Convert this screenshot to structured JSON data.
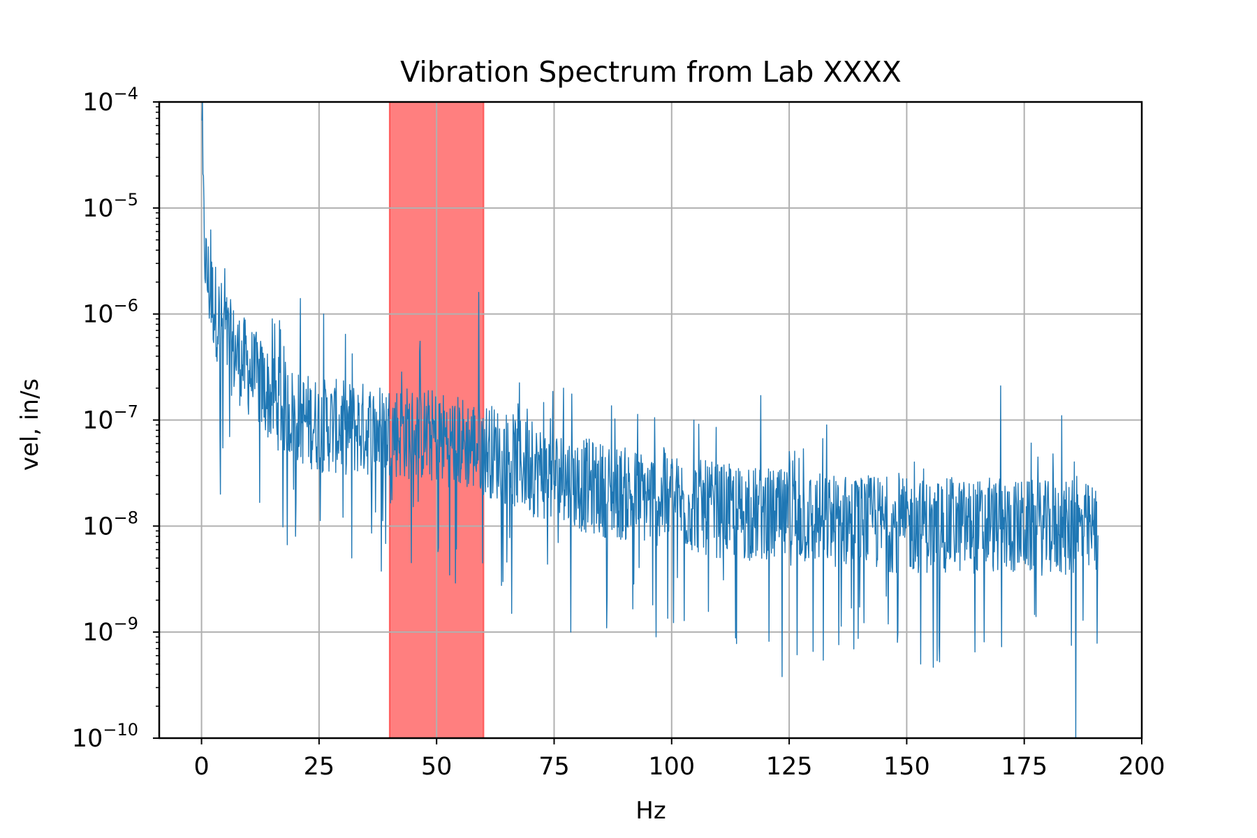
{
  "chart_data": {
    "type": "line",
    "title": "Vibration Spectrum from Lab XXXX",
    "xlabel": "Hz",
    "ylabel": "vel, in/s",
    "xlim": [
      -9,
      200
    ],
    "ylim": [
      1e-10,
      0.0001
    ],
    "yscale": "log",
    "grid": true,
    "line_color": "#1f77b4",
    "x_ticks": [
      {
        "value": 0,
        "label": "0"
      },
      {
        "value": 25,
        "label": "25"
      },
      {
        "value": 50,
        "label": "50"
      },
      {
        "value": 75,
        "label": "75"
      },
      {
        "value": 100,
        "label": "100"
      },
      {
        "value": 125,
        "label": "125"
      },
      {
        "value": 150,
        "label": "150"
      },
      {
        "value": 175,
        "label": "175"
      },
      {
        "value": 200,
        "label": "200"
      }
    ],
    "y_ticks": [
      {
        "value": 0.0001,
        "base": "10",
        "exp": "−4"
      },
      {
        "value": 1e-05,
        "base": "10",
        "exp": "−5"
      },
      {
        "value": 1e-06,
        "base": "10",
        "exp": "−6"
      },
      {
        "value": 1e-07,
        "base": "10",
        "exp": "−7"
      },
      {
        "value": 1e-08,
        "base": "10",
        "exp": "−8"
      },
      {
        "value": 1e-09,
        "base": "10",
        "exp": "−9"
      },
      {
        "value": 1e-10,
        "base": "10",
        "exp": "−10"
      }
    ],
    "highlight_band": {
      "x_start": 40,
      "x_end": 60,
      "color": "#ff0000",
      "opacity": 0.5
    },
    "series": [
      {
        "x_start": 0.1,
        "x_end": 190.7,
        "envelope": [
          [
            0.1,
            0.0001
          ],
          [
            0.3,
            1.5e-05
          ],
          [
            0.5,
            6e-06
          ],
          [
            1,
            2.5e-06
          ],
          [
            2,
            1.5e-06
          ],
          [
            4,
            8e-07
          ],
          [
            6,
            5e-07
          ],
          [
            10,
            3e-07
          ],
          [
            15,
            1.6e-07
          ],
          [
            20,
            1.1e-07
          ],
          [
            25,
            9e-08
          ],
          [
            30,
            8.5e-08
          ],
          [
            40,
            8e-08
          ],
          [
            50,
            7e-08
          ],
          [
            60,
            5.5e-08
          ],
          [
            70,
            3.5e-08
          ],
          [
            80,
            2.5e-08
          ],
          [
            90,
            2e-08
          ],
          [
            100,
            1.7e-08
          ],
          [
            110,
            1.4e-08
          ],
          [
            125,
            1.2e-08
          ],
          [
            140,
            1.1e-08
          ],
          [
            150,
            1e-08
          ],
          [
            170,
            1e-08
          ],
          [
            190.7,
            9e-09
          ]
        ],
        "spikes": [
          {
            "x": 21,
            "y": 1.4e-06
          },
          {
            "x": 26,
            "y": 1e-06
          },
          {
            "x": 59,
            "y": 1.6e-06
          },
          {
            "x": 170,
            "y": 2.1e-07
          },
          {
            "x": 183,
            "y": 1.1e-07
          },
          {
            "x": 77,
            "y": 2e-07
          },
          {
            "x": 119,
            "y": 1.7e-07
          },
          {
            "x": 133,
            "y": 9e-08
          },
          {
            "x": 15,
            "y": 9e-07
          },
          {
            "x": 9,
            "y": 8e-07
          }
        ],
        "dips": [
          {
            "x": 123.5,
            "y": 3.8e-10
          },
          {
            "x": 186,
            "y": 1e-10
          },
          {
            "x": 78.5,
            "y": 1e-09
          },
          {
            "x": 153,
            "y": 5e-10
          },
          {
            "x": 148,
            "y": 8e-10
          },
          {
            "x": 164.5,
            "y": 6.5e-10
          },
          {
            "x": 185,
            "y": 7.5e-10
          },
          {
            "x": 32,
            "y": 5e-09
          },
          {
            "x": 66,
            "y": 1.5e-09
          },
          {
            "x": 4,
            "y": 2e-08
          },
          {
            "x": 20,
            "y": 8e-09
          }
        ]
      }
    ]
  }
}
